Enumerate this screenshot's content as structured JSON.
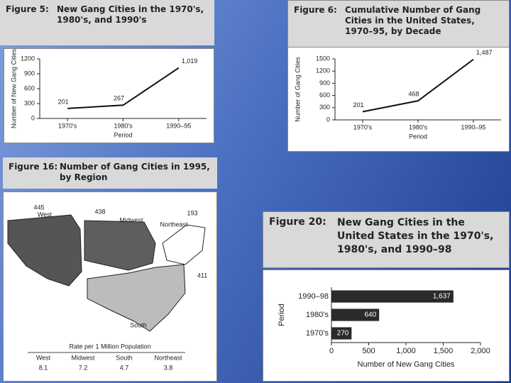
{
  "chart_data": [
    {
      "type": "line",
      "figure": "Figure 5:",
      "title": "New Gang Cities in the 1970's, 1980's, and 1990's",
      "categories": [
        "1970's",
        "1980's",
        "1990–95"
      ],
      "values": [
        201,
        267,
        1019
      ],
      "value_labels": [
        "201",
        "267",
        "1,019"
      ],
      "ylim": [
        0,
        1200
      ],
      "yticks": [
        0,
        300,
        600,
        900,
        1200
      ],
      "ylabel": "Number of New Gang Cities",
      "xlabel": "Period",
      "color": "#111111"
    },
    {
      "type": "line",
      "figure": "Figure 6:",
      "title": "Cumulative Number of Gang Cities in the United States, 1970–95, by Decade",
      "categories": [
        "1970's",
        "1980's",
        "1990–95"
      ],
      "values": [
        201,
        468,
        1487
      ],
      "value_labels": [
        "201",
        "468",
        "1,487"
      ],
      "ylim": [
        0,
        1500
      ],
      "yticks": [
        0,
        300,
        600,
        900,
        1200,
        1500
      ],
      "ylabel": "Number of Gang Cities",
      "xlabel": "Period",
      "color": "#111111"
    },
    {
      "type": "map",
      "figure": "Figure 16:",
      "title": "Number of Gang Cities in 1995, by Region",
      "categories": [
        "West",
        "Midwest",
        "Northeast",
        "South"
      ],
      "values": [
        445,
        438,
        193,
        411
      ],
      "table": {
        "title": "Rate per 1 Million Population",
        "columns": [
          "West",
          "Midwest",
          "South",
          "Northeast"
        ],
        "values": [
          8.1,
          7.2,
          4.7,
          3.8
        ]
      }
    },
    {
      "type": "hbar",
      "figure": "Figure 20:",
      "title": "New Gang Cities in the United States in the 1970's, 1980's, and 1990–98",
      "categories": [
        "1990–98",
        "1980's",
        "1970's"
      ],
      "values": [
        1637,
        640,
        270
      ],
      "value_labels": [
        "1,637",
        "640",
        "270"
      ],
      "xlim": [
        0,
        2000
      ],
      "xticks": [
        0,
        500,
        {
          "value": 1000,
          "label": "1,000"
        },
        {
          "value": 1500,
          "label": "1,500"
        },
        {
          "value": 2000,
          "label": "2,000"
        }
      ],
      "ylabel": "Period",
      "xlabel": "Number of New Gang Cities",
      "color": "#2a2a2a"
    }
  ]
}
